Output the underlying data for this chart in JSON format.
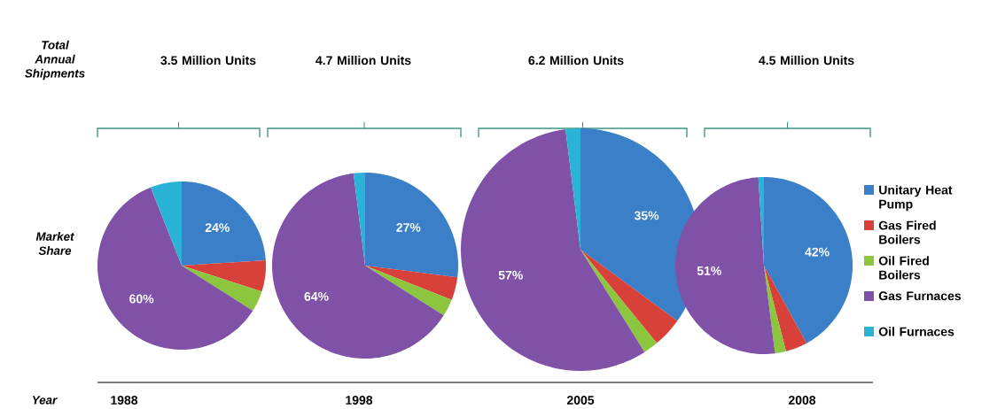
{
  "chart_data": [
    {
      "type": "pie",
      "title": "3.5 Million Units",
      "xlabel": "1988",
      "annotations": [
        "Total Annual Shipments",
        "Market Share",
        "Year"
      ],
      "categories": [
        null,
        null,
        null,
        null,
        null
      ],
      "values": [
        24,
        6,
        4,
        60,
        6
      ],
      "colors": [
        "#3a7fc8",
        "#d8403a",
        "#8cc63f",
        "#7f52a8",
        "#2ab3d6"
      ],
      "value_labels": [
        "24%",
        null,
        null,
        "60%",
        null
      ]
    },
    {
      "type": "pie",
      "title": "4.7 Million Units",
      "xlabel": "1998",
      "categories": [
        null,
        null,
        null,
        null,
        null
      ],
      "values": [
        27,
        4,
        3,
        64,
        2
      ],
      "colors": [
        "#3a7fc8",
        "#d8403a",
        "#8cc63f",
        "#7f52a8",
        "#2ab3d6"
      ],
      "value_labels": [
        "27%",
        null,
        null,
        "64%",
        null
      ]
    },
    {
      "type": "pie",
      "title": "6.2 Million Units",
      "xlabel": "2005",
      "categories": [
        null,
        null,
        null,
        null,
        null
      ],
      "values": [
        35,
        4,
        2,
        57,
        2
      ],
      "colors": [
        "#3a7fc8",
        "#d8403a",
        "#8cc63f",
        "#7f52a8",
        "#2ab3d6"
      ],
      "value_labels": [
        "35%",
        null,
        null,
        "57%",
        null
      ]
    },
    {
      "type": "pie",
      "title": "4.5 Million Units",
      "xlabel": "2008",
      "legend": "right",
      "categories": [
        "Unitary Heat Pump",
        "Gas Fired Boilers",
        "Oil Fired Boilers",
        "Gas Furnaces",
        "Oil Furnaces"
      ],
      "values": [
        42,
        4,
        2,
        51,
        1
      ],
      "colors": [
        "#3a7fc8",
        "#d8403a",
        "#8cc63f",
        "#7f52a8",
        "#2ab3d6"
      ],
      "value_labels": [
        "42%",
        null,
        null,
        "51%",
        null
      ]
    }
  ]
}
